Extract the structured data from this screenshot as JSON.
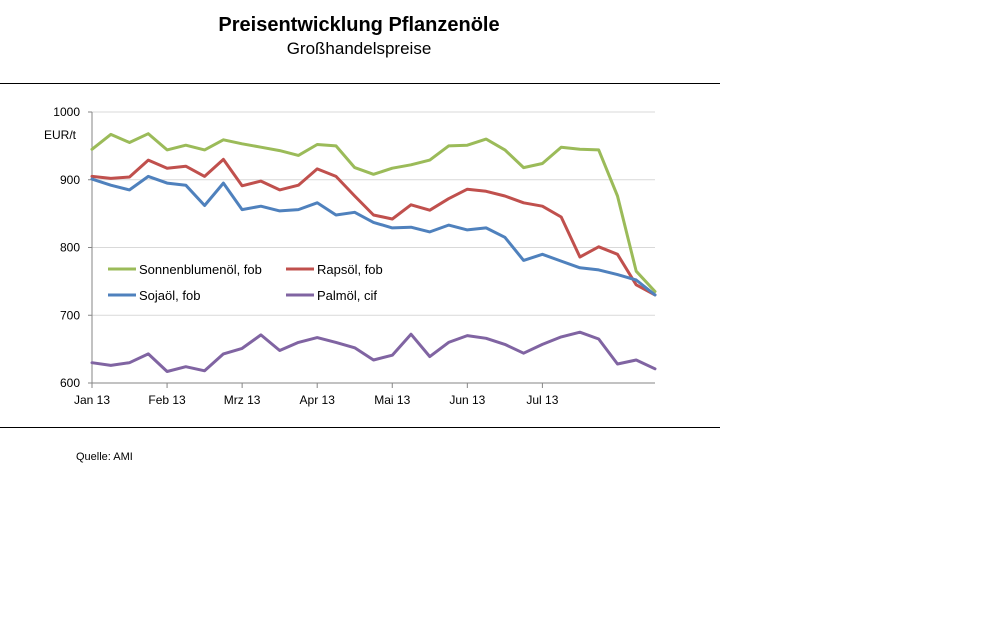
{
  "chart_data": {
    "type": "line",
    "title": "Preisentwicklung Pflanzenöle",
    "subtitle": "Großhandelspreise",
    "ylabel": "EUR/t",
    "ylim": [
      600,
      1000
    ],
    "yticks": [
      600,
      700,
      800,
      900,
      1000
    ],
    "grid": true,
    "x_tick_labels": [
      "Jan 13",
      "Feb 13",
      "Mrz 13",
      "Apr 13",
      "Mai 13",
      "Jun 13",
      "Jul 13"
    ],
    "x_tick_positions": [
      0,
      4,
      8,
      12,
      16,
      20,
      24
    ],
    "n_points": 31,
    "legend_position": "center-left",
    "series": [
      {
        "name": "Sonnenblumenöl, fob",
        "color": "#9bbb59",
        "values": [
          945,
          967,
          955,
          968,
          944,
          951,
          944,
          959,
          953,
          948,
          943,
          936,
          952,
          950,
          918,
          908,
          917,
          922,
          929,
          950,
          951,
          960,
          944,
          918,
          924,
          948,
          945,
          944,
          876,
          765,
          735
        ]
      },
      {
        "name": "Rapsöl, fob",
        "color": "#c0504d",
        "values": [
          905,
          902,
          904,
          929,
          917,
          920,
          905,
          930,
          891,
          898,
          885,
          892,
          916,
          905,
          876,
          848,
          842,
          863,
          855,
          872,
          886,
          883,
          876,
          866,
          861,
          845,
          786,
          801,
          790,
          745,
          730
        ]
      },
      {
        "name": "Sojaöl, fob",
        "color": "#4f81bd",
        "values": [
          901,
          892,
          885,
          905,
          895,
          892,
          862,
          895,
          856,
          861,
          854,
          856,
          866,
          848,
          852,
          837,
          829,
          830,
          823,
          833,
          826,
          829,
          815,
          781,
          790,
          780,
          770,
          767,
          760,
          752,
          730
        ]
      },
      {
        "name": "Palmöl, cif",
        "color": "#8064a2",
        "values": [
          630,
          626,
          630,
          643,
          617,
          624,
          618,
          643,
          651,
          671,
          648,
          660,
          667,
          660,
          652,
          634,
          641,
          672,
          639,
          660,
          670,
          666,
          657,
          644,
          657,
          668,
          675,
          665,
          628,
          634,
          621
        ]
      }
    ]
  },
  "source_note": "Quelle: AMI"
}
